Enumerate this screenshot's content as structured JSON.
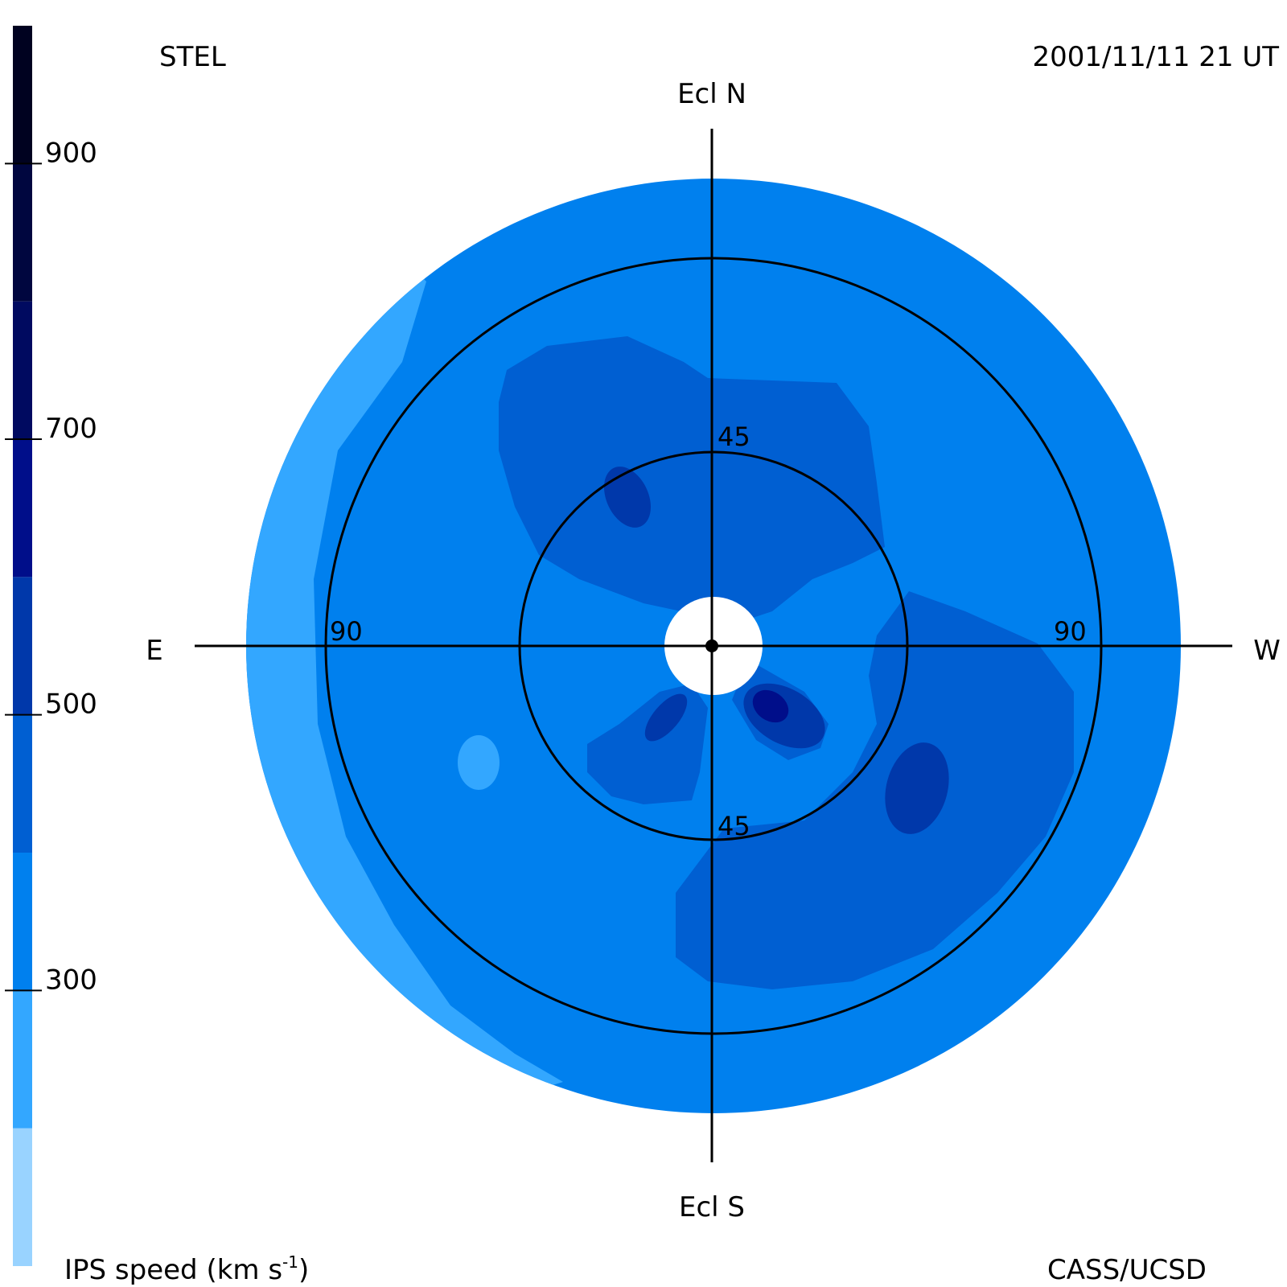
{
  "header": {
    "observatory": "STEL",
    "datetime": "2001/11/11 21 UT"
  },
  "compass": {
    "north": "Ecl N",
    "south": "Ecl S",
    "east": "E",
    "west": "W"
  },
  "elongation_labels": {
    "inner_north": "45",
    "inner_south": "45",
    "outer_east": "90",
    "outer_west": "90"
  },
  "colorbar": {
    "title_prefix": "IPS speed (km s",
    "title_exp": "-1",
    "title_suffix": ")",
    "tick_labels": [
      "900",
      "700",
      "500",
      "300"
    ],
    "tick_values": [
      900,
      700,
      500,
      300
    ],
    "range": [
      100,
      1000
    ],
    "bands": [
      {
        "from": 100,
        "to": 200,
        "color": "#99d3ff"
      },
      {
        "from": 200,
        "to": 300,
        "color": "#33a7ff"
      },
      {
        "from": 300,
        "to": 400,
        "color": "#0080ee"
      },
      {
        "from": 400,
        "to": 500,
        "color": "#005fd2"
      },
      {
        "from": 500,
        "to": 600,
        "color": "#0038aa"
      },
      {
        "from": 600,
        "to": 700,
        "color": "#000e8a"
      },
      {
        "from": 700,
        "to": 800,
        "color": "#000a60"
      },
      {
        "from": 800,
        "to": 900,
        "color": "#00063f"
      },
      {
        "from": 900,
        "to": 1000,
        "color": "#000220"
      }
    ]
  },
  "footer": {
    "credit": "CASS/UCSD"
  },
  "colors": {
    "disk_base": "#0080ee",
    "outer_fringe": "#33a7ff",
    "medium_region": "#005fd2",
    "dark_region": "#0038aa",
    "darkest_region": "#000e8a",
    "sun_occulter": "#ffffff",
    "axes": "#000000"
  }
}
